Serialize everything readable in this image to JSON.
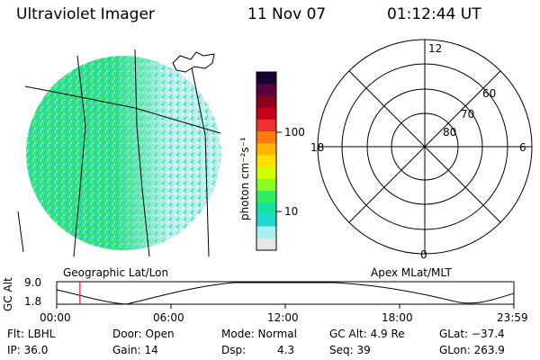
{
  "header": {
    "instrument": "Ultraviolet Imager",
    "date": "11 Nov 07",
    "time": "01:12:44 UT"
  },
  "colorbar": {
    "unit_label": "photon cm⁻²s⁻¹",
    "ticks": [
      "100",
      "10"
    ],
    "colors": [
      "#1a0033",
      "#5a0040",
      "#8a0020",
      "#c8001a",
      "#ee3030",
      "#ff7a10",
      "#ffb400",
      "#ffe000",
      "#d4ff00",
      "#88ff20",
      "#30ee60",
      "#10e0a0",
      "#20d8d0",
      "#a8f0f0",
      "#e6e6e6"
    ]
  },
  "left_panel": {
    "label": "Geographic Lat/Lon"
  },
  "right_panel": {
    "label": "Apex MLat/MLT",
    "mlt_labels": {
      "top": "12",
      "left": "18",
      "right": "6",
      "bottom": "0"
    },
    "lat_labels": [
      "60",
      "70",
      "80"
    ]
  },
  "timeline": {
    "axis_label": "GC Alt",
    "ytick_top": "9.0",
    "ytick_bottom": "1.8",
    "xticks": [
      "00:00",
      "06:00",
      "12:00",
      "18:00",
      "23:59"
    ],
    "current_time_fraction": 0.051
  },
  "status": {
    "flt": "Flt: LBHL",
    "ip": "IP: 36.0",
    "door": "Door: Open",
    "gain": "Gain: 14",
    "mode": "Mode: Normal",
    "dsp_label": "Dsp:",
    "dsp_value": "4.3",
    "gc_alt": "GC Alt: 4.9 Re",
    "seq": "Seq: 39",
    "glat": "GLat: −37.4",
    "glon": "GLon: 263.9"
  }
}
